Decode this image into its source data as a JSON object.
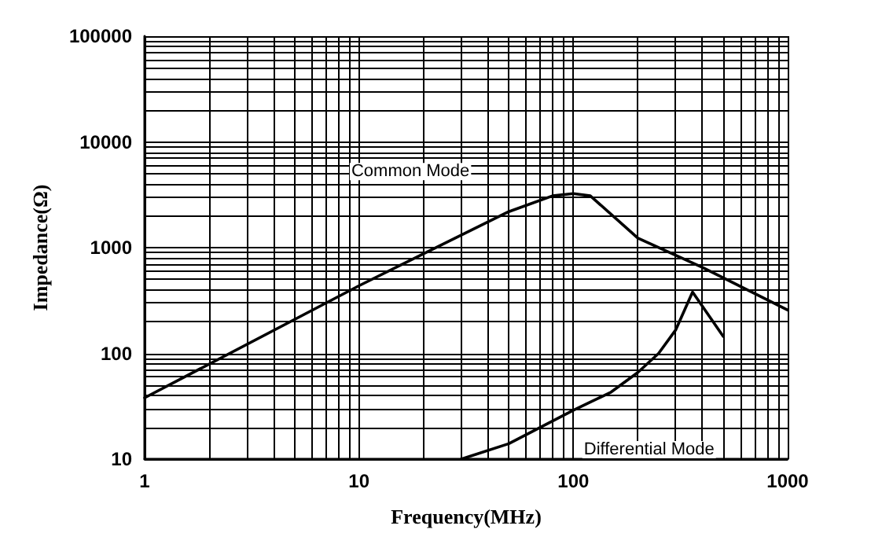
{
  "chart_data": {
    "type": "line",
    "xlabel": "Frequency(MHz)",
    "ylabel": "Impedance(Ω)",
    "log": "xy",
    "grid": true,
    "legend": false,
    "marker": "none",
    "line_style": "solid",
    "xlim": [
      1,
      1000
    ],
    "ylim": [
      10,
      100000
    ],
    "xticks": [
      1,
      {
        "value": 2,
        "label": null
      },
      {
        "value": 3,
        "label": null
      },
      {
        "value": 4,
        "label": null
      },
      {
        "value": 5,
        "label": null
      },
      {
        "value": 6,
        "label": null
      },
      {
        "value": 7,
        "label": null
      },
      {
        "value": 8,
        "label": null
      },
      {
        "value": 9,
        "label": null
      },
      10,
      {
        "value": 20,
        "label": null
      },
      {
        "value": 30,
        "label": null
      },
      {
        "value": 40,
        "label": null
      },
      {
        "value": 50,
        "label": null
      },
      {
        "value": 60,
        "label": null
      },
      {
        "value": 70,
        "label": null
      },
      {
        "value": 80,
        "label": null
      },
      {
        "value": 90,
        "label": null
      },
      100,
      {
        "value": 200,
        "label": null
      },
      {
        "value": 300,
        "label": null
      },
      {
        "value": 400,
        "label": null
      },
      {
        "value": 500,
        "label": null
      },
      {
        "value": 600,
        "label": null
      },
      {
        "value": 700,
        "label": null
      },
      {
        "value": 800,
        "label": null
      },
      {
        "value": 900,
        "label": null
      },
      1000
    ],
    "yticks": [
      10,
      {
        "value": 20,
        "label": null
      },
      {
        "value": 30,
        "label": null
      },
      {
        "value": 40,
        "label": null
      },
      {
        "value": 50,
        "label": null
      },
      {
        "value": 60,
        "label": null
      },
      {
        "value": 70,
        "label": null
      },
      {
        "value": 80,
        "label": null
      },
      {
        "value": 90,
        "label": null
      },
      100,
      {
        "value": 200,
        "label": null
      },
      {
        "value": 300,
        "label": null
      },
      {
        "value": 400,
        "label": null
      },
      {
        "value": 500,
        "label": null
      },
      {
        "value": 600,
        "label": null
      },
      {
        "value": 700,
        "label": null
      },
      {
        "value": 800,
        "label": null
      },
      {
        "value": 900,
        "label": null
      },
      1000,
      {
        "value": 2000,
        "label": null
      },
      {
        "value": 3000,
        "label": null
      },
      {
        "value": 4000,
        "label": null
      },
      {
        "value": 5000,
        "label": null
      },
      {
        "value": 6000,
        "label": null
      },
      {
        "value": 7000,
        "label": null
      },
      {
        "value": 8000,
        "label": null
      },
      {
        "value": 9000,
        "label": null
      },
      10000,
      {
        "value": 20000,
        "label": null
      },
      {
        "value": 30000,
        "label": null
      },
      {
        "value": 40000,
        "label": null
      },
      {
        "value": 50000,
        "label": null
      },
      {
        "value": 60000,
        "label": null
      },
      {
        "value": 70000,
        "label": null
      },
      {
        "value": 80000,
        "label": null
      },
      {
        "value": 90000,
        "label": null
      },
      100000
    ],
    "series": [
      {
        "name": "Common Mode",
        "color": "#000000",
        "x": [
          1,
          10,
          50,
          80,
          100,
          120,
          200,
          400,
          1000
        ],
        "values": [
          38,
          436,
          2190,
          3090,
          3240,
          3090,
          1230,
          650,
          257
        ]
      },
      {
        "name": "Differential Mode",
        "color": "#000000",
        "x": [
          30,
          50,
          100,
          150,
          200,
          250,
          300,
          360,
          500
        ],
        "values": [
          10,
          14,
          29,
          43,
          66,
          100,
          166,
          380,
          145
        ]
      }
    ]
  }
}
